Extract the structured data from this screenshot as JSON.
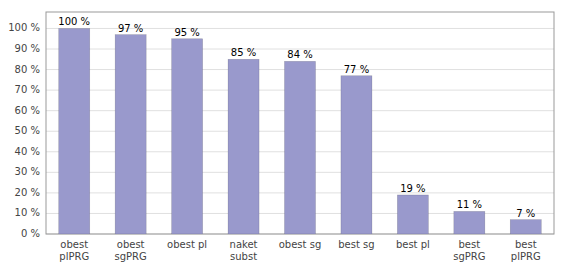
{
  "chart_data": {
    "type": "bar",
    "categories": [
      "obest\nplPRG",
      "obest\nsgPRG",
      "obest pl",
      "naket\nsubst",
      "obest sg",
      "best sg",
      "best pl",
      "best\nsgPRG",
      "best\nplPRG"
    ],
    "values": [
      100,
      97,
      95,
      85,
      84,
      77,
      19,
      11,
      7
    ],
    "value_labels": [
      "100 %",
      "97 %",
      "95 %",
      "85 %",
      "84 %",
      "77 %",
      "19 %",
      "11 %",
      "7 %"
    ],
    "data_labels": true,
    "color": "#9999CC",
    "ylim": [
      0,
      108
    ],
    "yticks": [
      {
        "value": 0,
        "label": "0 %"
      },
      {
        "value": 10,
        "label": "10 %"
      },
      {
        "value": 20,
        "label": "20 %"
      },
      {
        "value": 30,
        "label": "30 %"
      },
      {
        "value": 40,
        "label": "40 %"
      },
      {
        "value": 50,
        "label": "50 %"
      },
      {
        "value": 60,
        "label": "60 %"
      },
      {
        "value": 70,
        "label": "70 %"
      },
      {
        "value": 80,
        "label": "80 %"
      },
      {
        "value": 90,
        "label": "90 %"
      },
      {
        "value": 100,
        "label": "100 %"
      }
    ],
    "grid": true
  }
}
